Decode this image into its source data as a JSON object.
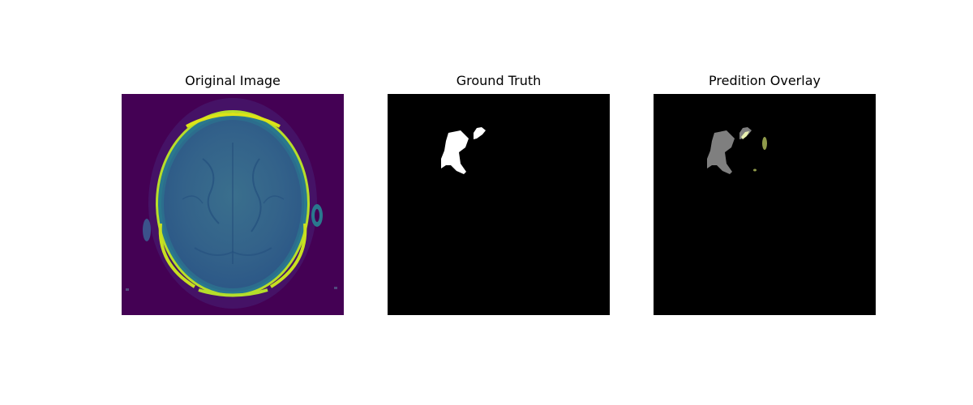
{
  "panels": [
    {
      "title": "Original Image",
      "kind": "mri-slice",
      "colormap": "viridis"
    },
    {
      "title": "Ground Truth",
      "kind": "binary-mask"
    },
    {
      "title": "Predition Overlay",
      "kind": "mask-overlay"
    }
  ],
  "colors": {
    "background": "#ffffff",
    "viridis_dark": "#440154",
    "viridis_mid": "#2f6e8e",
    "viridis_bright": "#d7e219",
    "mask": "#ffffff",
    "overlay_truth": "#7f7f7f",
    "overlay_prediction": "#8f9a4a"
  }
}
